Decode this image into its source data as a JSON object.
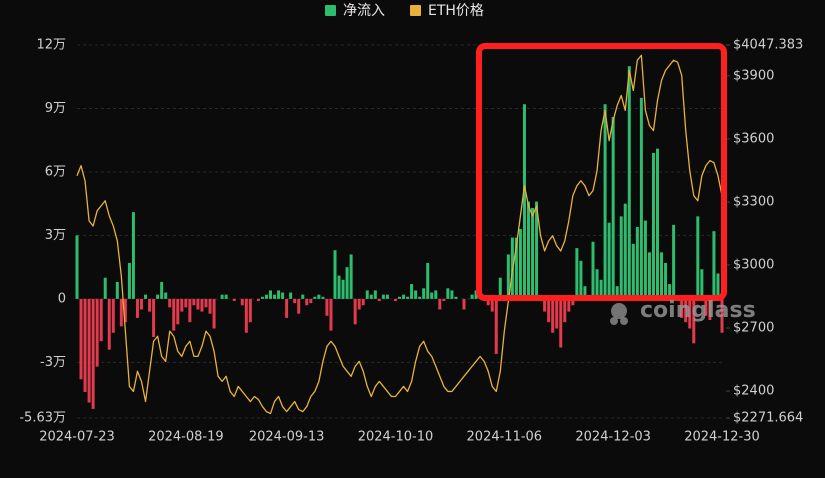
{
  "chart_data": {
    "type": "bar-line",
    "watermark": "coinglass",
    "categories": [
      "2024-07-23",
      null,
      null,
      null,
      null,
      null,
      null,
      null,
      null,
      null,
      null,
      null,
      null,
      null,
      null,
      null,
      null,
      null,
      null,
      null,
      null,
      null,
      null,
      null,
      null,
      null,
      null,
      "2024-08-19",
      null,
      null,
      null,
      null,
      null,
      null,
      null,
      null,
      null,
      null,
      null,
      null,
      null,
      null,
      null,
      null,
      null,
      null,
      null,
      null,
      null,
      null,
      null,
      null,
      "2024-09-13",
      null,
      null,
      null,
      null,
      null,
      null,
      null,
      null,
      null,
      null,
      null,
      null,
      null,
      null,
      null,
      null,
      null,
      null,
      null,
      null,
      null,
      null,
      null,
      null,
      null,
      null,
      "2024-10-10",
      null,
      null,
      null,
      null,
      null,
      null,
      null,
      null,
      null,
      null,
      null,
      null,
      null,
      null,
      null,
      null,
      null,
      null,
      null,
      null,
      null,
      null,
      null,
      null,
      null,
      null,
      "2024-11-06",
      null,
      null,
      null,
      null,
      null,
      null,
      null,
      null,
      null,
      null,
      null,
      null,
      null,
      null,
      null,
      null,
      null,
      null,
      null,
      null,
      null,
      null,
      null,
      null,
      null,
      null,
      "2024-12-03",
      null,
      null,
      null,
      null,
      null,
      null,
      null,
      null,
      null,
      null,
      null,
      null,
      null,
      null,
      null,
      null,
      null,
      null,
      null,
      null,
      null,
      null,
      null,
      null,
      null,
      null,
      "2024-12-30"
    ],
    "series": [
      {
        "name": "净流入",
        "type": "bar",
        "color": "#2ebd6e",
        "negative_color": "#e23b4d",
        "values": [
          3.0,
          -3.8,
          -4.4,
          -4.9,
          -5.2,
          -3.2,
          -2.0,
          1.0,
          -2.4,
          -1.6,
          0.8,
          -1.3,
          -1.1,
          1.7,
          4.1,
          -0.9,
          -0.5,
          0.2,
          -0.6,
          -1.8,
          0.2,
          0.8,
          0.3,
          -0.4,
          -1.5,
          -1.2,
          -0.6,
          -0.4,
          -1.1,
          -0.3,
          -0.5,
          -0.6,
          -0.4,
          -0.7,
          -1.4,
          0,
          0.2,
          0.2,
          0,
          -0.1,
          0,
          -0.3,
          -1.6,
          -1.1,
          0,
          -0.1,
          0.1,
          0.2,
          0.4,
          0.2,
          0.4,
          0.3,
          -0.9,
          0.3,
          -0.2,
          -0.7,
          0.2,
          -0.3,
          -0.2,
          0.1,
          0.2,
          0.1,
          -0.8,
          -1.5,
          2.3,
          1.1,
          0.9,
          1.5,
          2.1,
          -1.2,
          -0.5,
          -0.3,
          0.4,
          0.2,
          0.4,
          -0.1,
          0.2,
          0.2,
          0,
          -0.1,
          0.1,
          0.2,
          0.1,
          0.7,
          0.4,
          0.1,
          0.5,
          1.7,
          0.3,
          0.4,
          -0.5,
          -0.1,
          0.5,
          0.4,
          0.1,
          0,
          -0.5,
          0,
          0.2,
          0.4,
          0.2,
          0,
          -0.3,
          -0.6,
          -2.6,
          1.0,
          0,
          2.1,
          2.9,
          2.9,
          3.3,
          9.2,
          4.6,
          4.3,
          4.6,
          0,
          -0.6,
          -1.1,
          -1.6,
          -1.4,
          -2.3,
          -1.1,
          -0.6,
          -0.3,
          2.4,
          1.8,
          0.6,
          0,
          2.7,
          1.4,
          0.9,
          9.2,
          3.6,
          8.6,
          0.6,
          3.9,
          4.5,
          11.0,
          2.6,
          3.4,
          9.5,
          3.7,
          2.2,
          6.9,
          7.1,
          2.2,
          1.7,
          0.7,
          3.5,
          0,
          -0.9,
          -1.1,
          -1.4,
          -2.1,
          3.9,
          1.4,
          -0.8,
          -1.0,
          3.2,
          1.2,
          -1.6
        ]
      },
      {
        "name": "ETH价格",
        "type": "line",
        "axis": "y2",
        "color": "#e8b23a",
        "values": [
          3425,
          3473,
          3400,
          3210,
          3186,
          3258,
          3282,
          3306,
          3234,
          3186,
          3115,
          2947,
          2685,
          2422,
          2398,
          2494,
          2446,
          2350,
          2494,
          2637,
          2661,
          2565,
          2541,
          2685,
          2661,
          2589,
          2565,
          2613,
          2637,
          2565,
          2565,
          2613,
          2685,
          2661,
          2589,
          2470,
          2446,
          2470,
          2398,
          2374,
          2422,
          2398,
          2374,
          2350,
          2374,
          2360,
          2326,
          2302,
          2293,
          2350,
          2374,
          2326,
          2302,
          2326,
          2350,
          2312,
          2302,
          2326,
          2374,
          2398,
          2446,
          2541,
          2613,
          2637,
          2613,
          2565,
          2518,
          2494,
          2470,
          2518,
          2541,
          2494,
          2422,
          2374,
          2422,
          2446,
          2422,
          2398,
          2374,
          2374,
          2398,
          2422,
          2398,
          2446,
          2541,
          2613,
          2637,
          2589,
          2565,
          2518,
          2470,
          2422,
          2398,
          2398,
          2422,
          2446,
          2470,
          2494,
          2518,
          2541,
          2565,
          2541,
          2494,
          2422,
          2398,
          2494,
          2685,
          2828,
          2971,
          3091,
          3234,
          3377,
          3282,
          3234,
          3282,
          3139,
          3067,
          3115,
          3139,
          3091,
          3067,
          3115,
          3210,
          3330,
          3377,
          3401,
          3377,
          3330,
          3354,
          3449,
          3640,
          3736,
          3592,
          3688,
          3760,
          3807,
          3736,
          3927,
          3831,
          3975,
          3998,
          3736,
          3664,
          3640,
          3783,
          3879,
          3927,
          3951,
          3975,
          3965,
          3903,
          3640,
          3449,
          3330,
          3306,
          3425,
          3473,
          3497,
          3487,
          3425,
          3330
        ]
      }
    ],
    "ylim": [
      -5.63,
      12
    ],
    "yticks": [
      {
        "value": 12,
        "label": "12万"
      },
      {
        "value": 9,
        "label": "9万"
      },
      {
        "value": 6,
        "label": "6万"
      },
      {
        "value": 3,
        "label": "3万"
      },
      0,
      {
        "value": -3,
        "label": "-3万"
      },
      {
        "value": -5.63,
        "label": "-5.63万"
      }
    ],
    "y2lim": [
      2271.664,
      4047.383
    ],
    "y2ticks": [
      {
        "value": 4047.383,
        "label": "$4047.383"
      },
      {
        "value": 3900,
        "label": "$3900"
      },
      {
        "value": 3600,
        "label": "$3600"
      },
      {
        "value": 3300,
        "label": "$3300"
      },
      {
        "value": 3000,
        "label": "$3000"
      },
      {
        "value": 2700,
        "label": "$2700"
      },
      {
        "value": 2400,
        "label": "$2400"
      },
      {
        "value": 2271.664,
        "label": "$2271.664"
      }
    ],
    "grid": true,
    "legend": "top"
  }
}
